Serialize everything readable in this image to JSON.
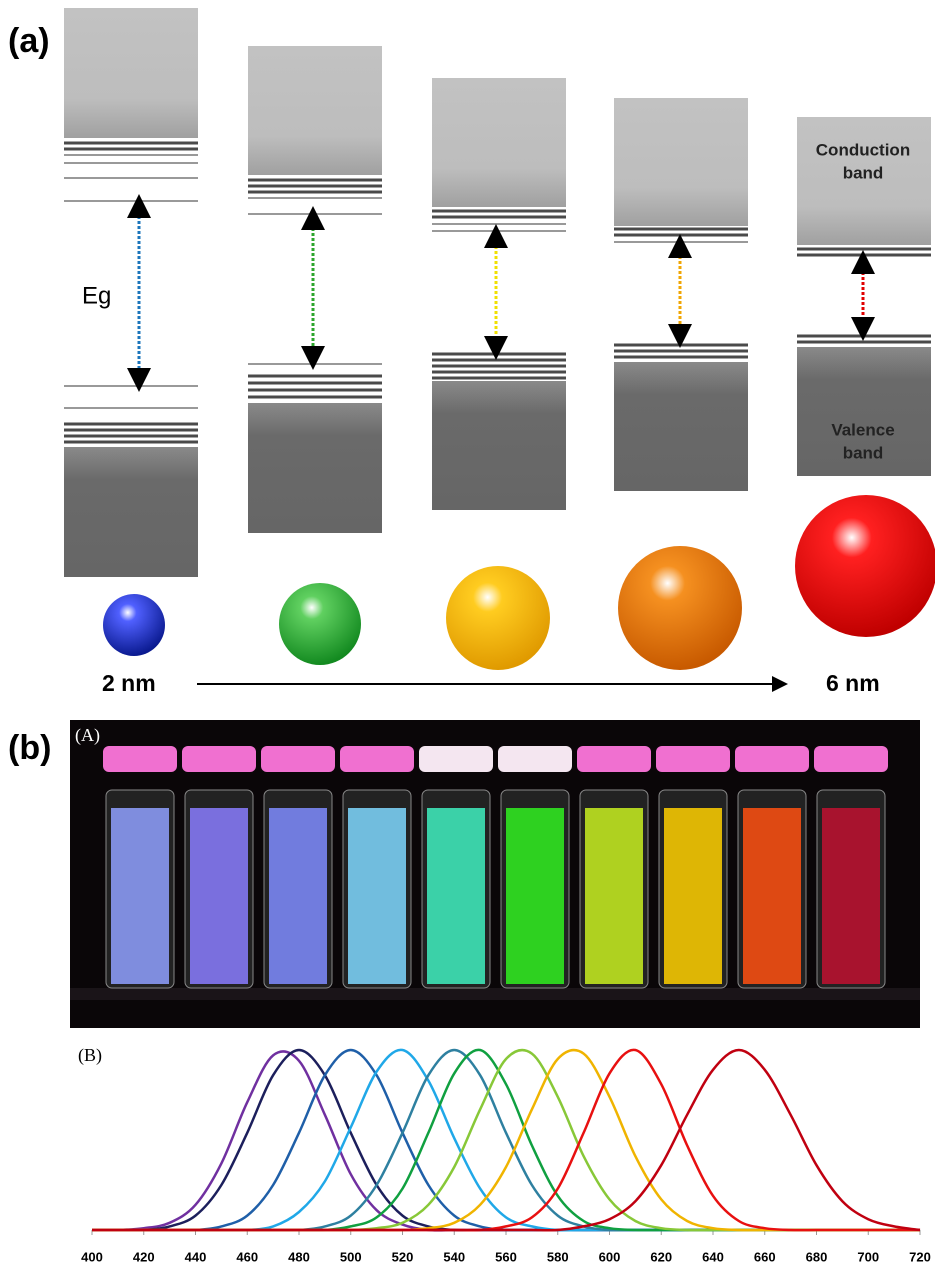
{
  "figure": {
    "panel_a": "(a)",
    "eg": "Eg",
    "conduction_label": [
      "Conduction",
      "band"
    ],
    "valence_label": [
      "Valence",
      "band"
    ],
    "size_small": "2 nm",
    "size_large": "6 nm",
    "panel_b": "(b)",
    "photo_label": "(A)",
    "spectra_label": "(B)"
  },
  "chart_data": {
    "type": "line",
    "x": [
      400,
      410,
      420,
      430,
      440,
      450,
      460,
      470,
      480,
      490,
      500,
      510,
      520,
      530,
      540,
      550,
      560,
      570,
      580,
      590,
      600,
      610,
      620,
      630,
      640,
      650,
      660,
      670,
      680,
      690,
      700,
      710,
      720
    ],
    "xlim": [
      400,
      720
    ],
    "xticks": [
      400,
      420,
      440,
      460,
      480,
      500,
      520,
      540,
      560,
      580,
      600,
      620,
      640,
      660,
      680,
      700,
      720
    ],
    "ylim": [
      0,
      100
    ],
    "series": [
      {
        "color": "#7030a0",
        "values": [
          0,
          0,
          1,
          4,
          14,
          37,
          71,
          97,
          94,
          64,
          31,
          11,
          3,
          0,
          0,
          0,
          0,
          0,
          0,
          0,
          0,
          0,
          0,
          0,
          0,
          0,
          0,
          0,
          0,
          0,
          0,
          0,
          0
        ]
      },
      {
        "color": "#1c1f5c",
        "values": [
          0,
          0,
          0,
          2,
          8,
          25,
          54,
          86,
          100,
          86,
          54,
          25,
          8,
          2,
          0,
          0,
          0,
          0,
          0,
          0,
          0,
          0,
          0,
          0,
          0,
          0,
          0,
          0,
          0,
          0,
          0,
          0,
          0
        ]
      },
      {
        "color": "#1f5fa8",
        "values": [
          0,
          0,
          0,
          0,
          0,
          2,
          8,
          25,
          54,
          86,
          100,
          86,
          54,
          25,
          8,
          2,
          0,
          0,
          0,
          0,
          0,
          0,
          0,
          0,
          0,
          0,
          0,
          0,
          0,
          0,
          0,
          0,
          0
        ]
      },
      {
        "color": "#20a8e8",
        "values": [
          0,
          0,
          0,
          0,
          0,
          0,
          0,
          2,
          10,
          27,
          57,
          88,
          100,
          83,
          51,
          23,
          7,
          2,
          0,
          0,
          0,
          0,
          0,
          0,
          0,
          0,
          0,
          0,
          0,
          0,
          0,
          0,
          0
        ]
      },
      {
        "color": "#2e80a0",
        "values": [
          0,
          0,
          0,
          0,
          0,
          0,
          0,
          0,
          0,
          2,
          8,
          25,
          54,
          86,
          100,
          86,
          54,
          25,
          8,
          2,
          0,
          0,
          0,
          0,
          0,
          0,
          0,
          0,
          0,
          0,
          0,
          0,
          0
        ]
      },
      {
        "color": "#10a040",
        "values": [
          0,
          0,
          0,
          0,
          0,
          0,
          0,
          0,
          0,
          0,
          2,
          7,
          23,
          54,
          87,
          100,
          81,
          47,
          19,
          5,
          1,
          0,
          0,
          0,
          0,
          0,
          0,
          0,
          0,
          0,
          0,
          0,
          0
        ]
      },
      {
        "color": "#88c838",
        "values": [
          0,
          0,
          0,
          0,
          0,
          0,
          0,
          0,
          0,
          0,
          0,
          1,
          4,
          14,
          35,
          67,
          95,
          98,
          74,
          41,
          17,
          5,
          1,
          0,
          0,
          0,
          0,
          0,
          0,
          0,
          0,
          0,
          0
        ]
      },
      {
        "color": "#f0b400",
        "values": [
          0,
          0,
          0,
          0,
          0,
          0,
          0,
          0,
          0,
          0,
          0,
          0,
          0,
          1,
          4,
          14,
          35,
          67,
          95,
          98,
          74,
          41,
          17,
          5,
          1,
          0,
          0,
          0,
          0,
          0,
          0,
          0,
          0
        ]
      },
      {
        "color": "#e81010",
        "values": [
          0,
          0,
          0,
          0,
          0,
          0,
          0,
          0,
          0,
          0,
          0,
          0,
          0,
          0,
          0,
          0,
          2,
          7,
          23,
          54,
          87,
          100,
          81,
          47,
          19,
          5,
          1,
          0,
          0,
          0,
          0,
          0,
          0
        ]
      },
      {
        "color": "#c00010",
        "values": [
          0,
          0,
          0,
          0,
          0,
          0,
          0,
          0,
          0,
          0,
          0,
          0,
          0,
          0,
          0,
          0,
          0,
          0,
          0,
          2,
          6,
          16,
          36,
          64,
          89,
          100,
          89,
          64,
          36,
          16,
          6,
          2,
          0
        ]
      }
    ]
  }
}
